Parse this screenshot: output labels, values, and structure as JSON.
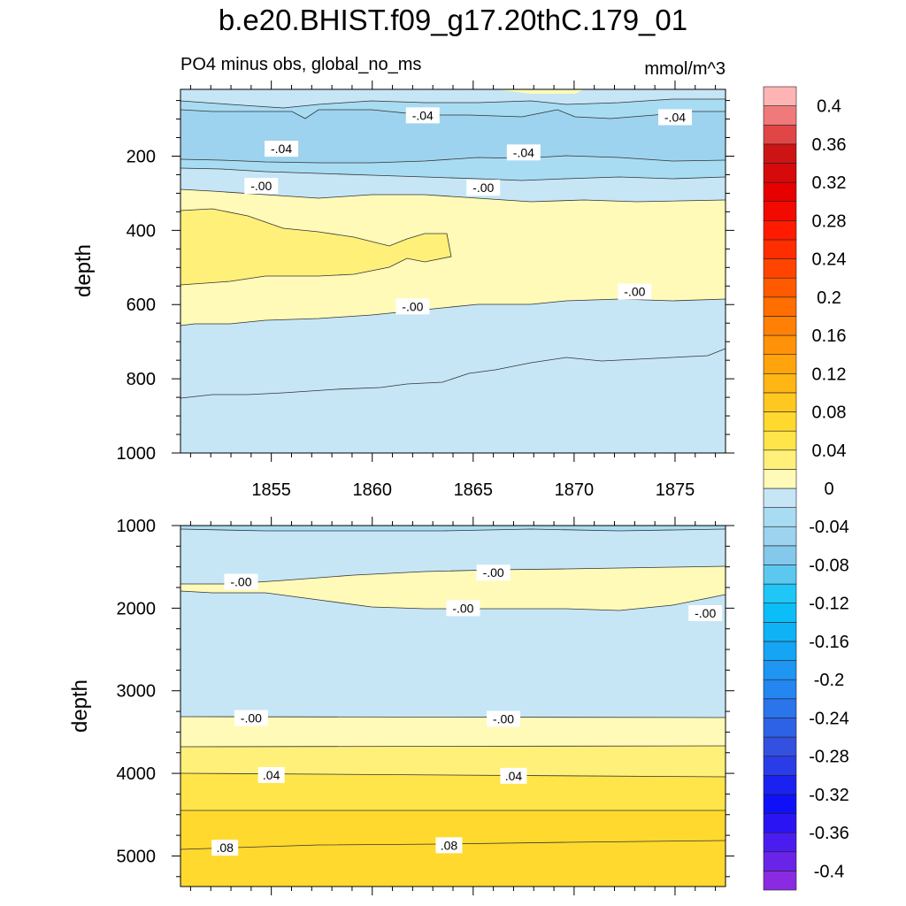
{
  "title": "b.e20.BHIST.f09_g17.20thC.179_01",
  "subtitle": "PO4 minus obs, global_no_ms",
  "units": "mmol/m^3",
  "colors": {
    "neg_small": "#c6e6f6",
    "neg_04": "#a8dcf2",
    "neg_08": "#9dd3ee",
    "pos_small": "#fffab8",
    "pos_04": "#fff07a",
    "pos_08": "#ffe44a",
    "pos_12": "#ffd92e"
  },
  "chart_data": [
    {
      "type": "contour",
      "panel": "upper",
      "xlabel": "",
      "ylabel": "depth",
      "xlim": [
        1850.5,
        1877.5
      ],
      "ylim": [
        1000,
        20
      ],
      "x_ticks": [
        1855,
        1860,
        1865,
        1870,
        1875
      ],
      "x_tick_labels": [
        "1855",
        "1860",
        "1865",
        "1870",
        "1875"
      ],
      "y_ticks": [
        200,
        400,
        600,
        800,
        1000
      ],
      "y_tick_labels": [
        "200",
        "400",
        "600",
        "800",
        "1000"
      ],
      "contour_labels": [
        {
          "text": "-.04",
          "x": 1862.5,
          "y": 90
        },
        {
          "text": "-.04",
          "x": 1875.0,
          "y": 95
        },
        {
          "text": "-.04",
          "x": 1855.5,
          "y": 180
        },
        {
          "text": "-.04",
          "x": 1867.5,
          "y": 190
        },
        {
          "text": "-.00",
          "x": 1854.5,
          "y": 280
        },
        {
          "text": "-.00",
          "x": 1865.5,
          "y": 285
        },
        {
          "text": "-.00",
          "x": 1862.0,
          "y": 605
        },
        {
          "text": "-.00",
          "x": 1873.0,
          "y": 565
        }
      ]
    },
    {
      "type": "contour",
      "panel": "lower",
      "xlabel": "",
      "ylabel": "depth",
      "xlim": [
        1850.5,
        1877.5
      ],
      "ylim": [
        5370,
        1000
      ],
      "x_ticks": [
        1855,
        1860,
        1865,
        1870,
        1875
      ],
      "y_ticks": [
        1000,
        2000,
        3000,
        4000,
        5000
      ],
      "y_tick_labels": [
        "1000",
        "2000",
        "3000",
        "4000",
        "5000"
      ],
      "contour_labels": [
        {
          "text": "-.00",
          "x": 1853.5,
          "y": 1680
        },
        {
          "text": "-.00",
          "x": 1866.0,
          "y": 1570
        },
        {
          "text": "-.00",
          "x": 1864.5,
          "y": 2000
        },
        {
          "text": "-.00",
          "x": 1876.5,
          "y": 2060
        },
        {
          "text": "-.00",
          "x": 1854.0,
          "y": 3330
        },
        {
          "text": "-.00",
          "x": 1866.5,
          "y": 3340
        },
        {
          "text": ".04",
          "x": 1855.0,
          "y": 4020
        },
        {
          "text": ".04",
          "x": 1867.0,
          "y": 4030
        },
        {
          "text": ".08",
          "x": 1852.7,
          "y": 4900
        },
        {
          "text": ".08",
          "x": 1863.8,
          "y": 4870
        }
      ]
    },
    {
      "type": "colorbar",
      "levels": [
        -0.42,
        -0.4,
        -0.38,
        -0.36,
        -0.34,
        -0.32,
        -0.3,
        -0.28,
        -0.26,
        -0.24,
        -0.22,
        -0.2,
        -0.18,
        -0.16,
        -0.14,
        -0.12,
        -0.1,
        -0.08,
        -0.06,
        -0.04,
        -0.02,
        0,
        0.02,
        0.04,
        0.06,
        0.08,
        0.1,
        0.12,
        0.14,
        0.16,
        0.18,
        0.2,
        0.22,
        0.24,
        0.26,
        0.28,
        0.3,
        0.32,
        0.34,
        0.36,
        0.38,
        0.4,
        0.42
      ],
      "colors": [
        "#8a2be2",
        "#6a24e8",
        "#4a1cf0",
        "#2a14f4",
        "#1010f8",
        "#1a22f0",
        "#2a3ce8",
        "#3450e0",
        "#2e62e6",
        "#2a74ec",
        "#2486f0",
        "#1e96f2",
        "#16a4f4",
        "#10b2f6",
        "#0cbef8",
        "#20c6f6",
        "#5cc8f0",
        "#84c8ec",
        "#9dd3ee",
        "#a8dcf2",
        "#c6e6f6",
        "#fffab8",
        "#fff07a",
        "#ffe44a",
        "#ffd92e",
        "#ffc820",
        "#ffb614",
        "#ffa40c",
        "#ff9208",
        "#ff8004",
        "#ff6e00",
        "#ff5a00",
        "#ff4400",
        "#ff2e00",
        "#ff1a00",
        "#f20a00",
        "#e60000",
        "#d60a0a",
        "#cc1414",
        "#e04646",
        "#f07a7a",
        "#ffb4b4"
      ],
      "tick_labels": [
        "-0.4",
        "-0.36",
        "-0.32",
        "-0.28",
        "-0.24",
        "-0.2",
        "-0.16",
        "-0.12",
        "-0.08",
        "-0.04",
        "0",
        "0.04",
        "0.08",
        "0.12",
        "0.16",
        "0.2",
        "0.24",
        "0.28",
        "0.32",
        "0.36",
        "0.4"
      ],
      "tick_values": [
        -0.4,
        -0.36,
        -0.32,
        -0.28,
        -0.24,
        -0.2,
        -0.16,
        -0.12,
        -0.08,
        -0.04,
        0,
        0.04,
        0.08,
        0.12,
        0.16,
        0.2,
        0.24,
        0.28,
        0.32,
        0.36,
        0.4
      ]
    }
  ]
}
